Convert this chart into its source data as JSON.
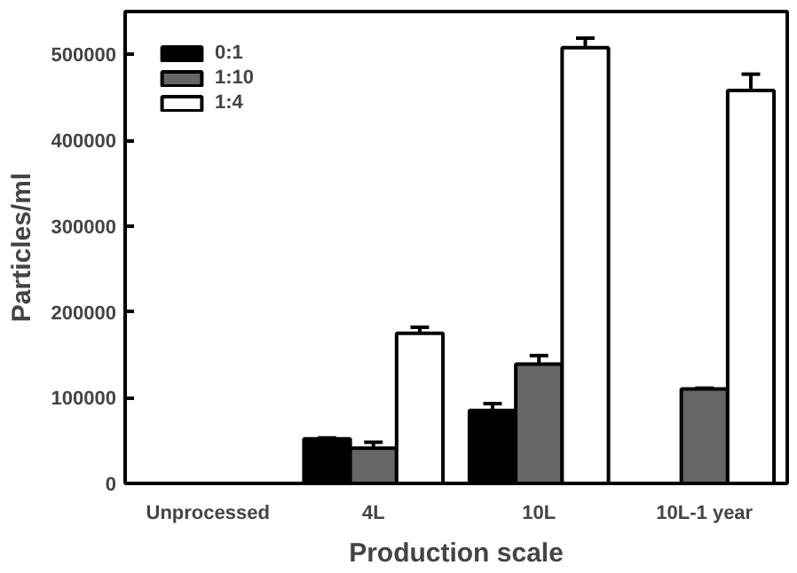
{
  "chart_data": {
    "type": "bar",
    "xlabel": "Production scale",
    "ylabel": "Particles/ml",
    "categories": [
      "Unprocessed",
      "4L",
      "10L",
      "10L-1 year"
    ],
    "series": [
      {
        "name": "0:1",
        "color": "#000000",
        "values": [
          null,
          52000,
          85000,
          null
        ],
        "errors": [
          null,
          [
            52000,
            53000
          ],
          [
            85000,
            93000
          ],
          null
        ]
      },
      {
        "name": "1:10",
        "color": "#666666",
        "values": [
          null,
          41000,
          139000,
          110000
        ],
        "errors": [
          null,
          [
            41000,
            48000
          ],
          [
            139000,
            149000
          ],
          [
            110000,
            111000
          ]
        ]
      },
      {
        "name": "1:4",
        "color": "#ffffff",
        "values": [
          null,
          175000,
          508000,
          458000
        ],
        "errors": [
          null,
          [
            175000,
            182000
          ],
          [
            508000,
            519000
          ],
          [
            458000,
            477000
          ]
        ]
      }
    ],
    "ylim": [
      0,
      550000
    ],
    "yticks": [
      0,
      100000,
      200000,
      300000,
      400000,
      500000
    ],
    "grid": false,
    "legend": "top left"
  }
}
